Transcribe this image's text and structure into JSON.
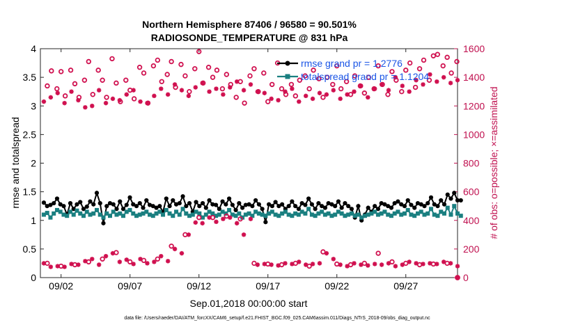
{
  "chart_data": {
    "type": "line",
    "title": "Northern Hemisphere 87406 / 96580 = 90.501%",
    "subtitle": "RADIOSONDE_TEMPERATURE @ 831 hPa",
    "xlabel": "Sep.01,2018 00:00:00 start",
    "ylabel": "rmse and totalspread",
    "y2label": "# of obs: o=possible; ×=assimilated",
    "footer": "data file: /Users/raeder/DAI/ATM_forcXX/CAM6_setup/f.e21.FHIST_BGC.f09_025.CAM6assim.011/Diags_NTrS_2018-09/obs_diag_output.nc",
    "xlim": [
      0.5,
      30.75
    ],
    "ylim": [
      0,
      4
    ],
    "y2lim": [
      0,
      1600
    ],
    "x_ticks": [
      2,
      7,
      12,
      17,
      22,
      27
    ],
    "x_tick_labels": [
      "09/02",
      "09/07",
      "09/12",
      "09/17",
      "09/22",
      "09/27"
    ],
    "y_ticks": [
      "0",
      "0.5",
      "1",
      "1.5",
      "2",
      "2.5",
      "3",
      "3.5",
      "4"
    ],
    "y2_ticks": [
      "0",
      "200",
      "400",
      "600",
      "800",
      "1000",
      "1200",
      "1400",
      "1600"
    ],
    "legend": [
      {
        "label": "rmse grand pr = 1.2776",
        "color": "#000000"
      },
      {
        "label": "totalspread grand pr = 1.1204",
        "color": "#1a7f80"
      }
    ],
    "series": [
      {
        "name": "rmse",
        "axis": "left",
        "color": "#000000",
        "values": [
          1.31,
          1.25,
          1.27,
          1.3,
          1.38,
          1.28,
          1.25,
          1.1,
          1.3,
          1.2,
          1.28,
          1.32,
          1.2,
          1.24,
          1.33,
          1.28,
          1.48,
          1.3,
          0.95,
          1.25,
          1.3,
          1.28,
          1.2,
          1.33,
          1.2,
          1.27,
          1.4,
          1.28,
          1.25,
          1.3,
          1.22,
          1.35,
          1.27,
          1.25,
          1.22,
          1.25,
          1.15,
          1.38,
          1.25,
          1.35,
          1.28,
          1.3,
          1.42,
          1.25,
          1.3,
          1.15,
          1.32,
          1.25,
          1.3,
          1.22,
          1.35,
          1.28,
          1.27,
          1.2,
          1.33,
          1.28,
          1.38,
          1.27,
          1.18,
          1.3,
          1.22,
          1.27,
          1.28,
          1.25,
          1.35,
          1.28,
          1.2,
          0.97,
          1.28,
          1.25,
          1.32,
          1.25,
          1.28,
          1.2,
          1.25,
          1.33,
          1.25,
          1.2,
          1.3,
          1.27,
          1.38,
          1.28,
          1.2,
          1.3,
          1.25,
          1.22,
          1.3,
          1.28,
          1.25,
          1.33,
          1.22,
          1.3,
          1.25,
          1.2,
          1.05,
          1.25,
          1.0,
          1.1,
          1.22,
          1.15,
          1.25,
          1.2,
          1.3,
          1.28,
          1.25,
          1.22,
          1.3,
          1.33,
          1.28,
          1.25,
          1.35,
          1.27,
          1.22,
          1.3,
          1.28,
          1.25,
          1.3,
          1.4,
          1.28,
          1.25,
          1.35,
          1.28,
          1.45,
          1.38,
          1.48,
          1.35,
          1.35
        ]
      },
      {
        "name": "totalspread",
        "axis": "left",
        "color": "#1a7f80",
        "values": [
          1.1,
          1.13,
          1.05,
          1.12,
          1.18,
          1.15,
          1.1,
          1.08,
          1.15,
          1.1,
          1.17,
          1.12,
          1.08,
          1.15,
          1.1,
          1.12,
          1.18,
          1.1,
          1.05,
          1.12,
          1.08,
          1.15,
          1.1,
          1.12,
          1.08,
          1.15,
          1.18,
          1.12,
          1.08,
          1.1,
          1.12,
          1.15,
          1.1,
          1.08,
          1.12,
          1.15,
          1.1,
          1.18,
          1.12,
          1.08,
          1.15,
          1.1,
          1.2,
          1.12,
          1.08,
          1.1,
          1.15,
          1.12,
          1.05,
          1.1,
          1.15,
          1.12,
          1.08,
          1.1,
          1.15,
          1.12,
          1.18,
          1.1,
          1.08,
          1.12,
          1.05,
          1.1,
          1.12,
          1.08,
          1.15,
          1.12,
          1.1,
          1.08,
          1.12,
          1.15,
          1.1,
          1.08,
          1.12,
          1.15,
          1.1,
          1.08,
          1.12,
          1.1,
          1.15,
          1.12,
          1.2,
          1.1,
          1.08,
          1.12,
          1.15,
          1.1,
          1.12,
          1.08,
          1.1,
          1.15,
          1.12,
          1.08,
          1.1,
          1.12,
          1.08,
          1.1,
          1.05,
          1.08,
          1.1,
          1.12,
          1.15,
          1.1,
          1.12,
          1.15,
          1.1,
          1.08,
          1.12,
          1.15,
          1.1,
          1.12,
          1.18,
          1.1,
          1.08,
          1.12,
          1.15,
          1.1,
          1.12,
          1.2,
          1.1,
          1.08,
          1.15,
          1.12,
          1.22,
          1.1,
          1.25,
          1.12,
          1.08
        ]
      },
      {
        "name": "possible",
        "axis": "right",
        "marker": "o",
        "color": "#d0104f",
        "x": [
          1.0,
          1.3,
          1.7,
          2.0,
          2.3,
          2.7,
          3.0,
          3.3,
          3.7,
          4.0,
          4.3,
          4.7,
          5.0,
          5.3,
          5.7,
          6.0,
          6.3,
          6.7,
          7.0,
          7.3,
          7.7,
          8.0,
          8.3,
          8.7,
          9.0,
          9.3,
          9.7,
          10.0,
          10.3,
          10.7,
          11.0,
          11.3,
          11.7,
          12.0,
          12.3,
          12.7,
          13.0,
          13.3,
          13.7,
          14.0,
          14.3,
          14.7,
          15.0,
          15.3,
          15.7,
          16.0,
          16.3,
          16.7,
          17.0,
          17.3,
          17.7,
          18.0,
          18.3,
          18.7,
          19.0,
          19.3,
          19.7,
          20.0,
          20.3,
          20.7,
          21.0,
          21.3,
          21.7,
          22.0,
          22.3,
          22.7,
          23.0,
          23.3,
          23.7,
          24.0,
          24.3,
          24.7,
          25.0,
          25.3,
          25.7,
          26.0,
          26.3,
          26.7,
          27.0,
          27.3,
          27.7,
          28.0,
          28.3,
          28.7,
          29.0,
          29.3,
          29.7,
          30.0,
          30.3,
          30.7
        ],
        "values": [
          1340,
          1445,
          1320,
          1440,
          1270,
          1450,
          1355,
          1260,
          1380,
          1510,
          1280,
          1450,
          1380,
          1260,
          1530,
          1360,
          1230,
          1380,
          1310,
          1250,
          1470,
          1430,
          1220,
          1480,
          1520,
          1370,
          1420,
          1510,
          1330,
          1490,
          1410,
          1300,
          1460,
          1580,
          1360,
          1470,
          1400,
          1450,
          1320,
          1420,
          1350,
          1260,
          1370,
          1220,
          1410,
          1460,
          1300,
          1430,
          1230,
          1350,
          1500,
          1320,
          1280,
          1350,
          1270,
          1380,
          1410,
          1320,
          1450,
          1390,
          1260,
          1400,
          1350,
          1480,
          1320,
          1370,
          1280,
          1410,
          1340,
          1290,
          1400,
          1320,
          1480,
          1350,
          1280,
          1440,
          1380,
          1300,
          1450,
          1500,
          1330,
          1460,
          1520,
          1380,
          1550,
          1560,
          1480,
          1540,
          1430,
          1510
        ]
      },
      {
        "name": "assimilated",
        "axis": "right",
        "marker": "x",
        "color": "#d0104f",
        "x": [
          0.75,
          1.25,
          1.75,
          2.25,
          2.75,
          3.25,
          3.75,
          4.25,
          4.75,
          5.25,
          5.75,
          6.25,
          6.75,
          7.25,
          7.75,
          8.25,
          8.75,
          9.25,
          9.75,
          10.25,
          10.75,
          11.25,
          11.75,
          12.25,
          12.75,
          13.25,
          13.75,
          14.25,
          14.75,
          15.25,
          15.75,
          16.25,
          16.75,
          17.25,
          17.75,
          18.25,
          18.75,
          19.25,
          19.75,
          20.25,
          20.75,
          21.25,
          21.75,
          22.25,
          22.75,
          23.25,
          23.75,
          24.25,
          24.75,
          25.25,
          25.75,
          26.25,
          26.75,
          27.25,
          27.75,
          28.25,
          28.75,
          29.25,
          29.75,
          30.25,
          30.75
        ],
        "values": [
          1230,
          1260,
          1290,
          1220,
          1300,
          1240,
          1190,
          1200,
          1310,
          1220,
          1250,
          1240,
          1280,
          1310,
          1230,
          1220,
          1270,
          1320,
          1280,
          1350,
          1310,
          1270,
          1330,
          1360,
          1300,
          1320,
          1280,
          1330,
          1370,
          1310,
          1350,
          1300,
          1290,
          1250,
          1240,
          1300,
          1320,
          1230,
          1270,
          1250,
          1290,
          1280,
          1310,
          1250,
          1280,
          1300,
          1340,
          1260,
          1320,
          1350,
          1310,
          1400,
          1340,
          1300,
          1380,
          1350,
          1420,
          1370,
          1400,
          1360,
          1380
        ]
      },
      {
        "name": "possible_low",
        "axis": "right",
        "marker": "o",
        "color": "#d0104f",
        "x": [
          1.0,
          2.0,
          3.0,
          4.0,
          5.0,
          6.0,
          7.0,
          8.0,
          9.0,
          10.0,
          11.0,
          12.0,
          13.0,
          14.0,
          15.0,
          16.0,
          17.0,
          18.0,
          19.0,
          20.0,
          21.0,
          22.0,
          23.0,
          24.0,
          25.0,
          26.0,
          27.0,
          28.0,
          29.0,
          30.0
        ],
        "values": [
          100,
          80,
          90,
          110,
          130,
          175,
          110,
          120,
          130,
          220,
          300,
          420,
          420,
          430,
          410,
          100,
          95,
          90,
          100,
          80,
          180,
          95,
          90,
          100,
          170,
          110,
          100,
          90,
          95,
          100
        ]
      },
      {
        "name": "assimilated_low",
        "axis": "right",
        "marker": "x",
        "color": "#d0104f",
        "x": [
          0.75,
          1.25,
          1.75,
          2.25,
          2.75,
          3.25,
          3.75,
          4.25,
          4.75,
          5.25,
          5.75,
          6.25,
          6.75,
          7.25,
          7.75,
          8.25,
          8.75,
          9.25,
          9.75,
          10.25,
          10.75,
          11.25,
          11.75,
          12.25,
          12.75,
          13.25,
          13.75,
          14.25,
          14.75,
          15.25,
          15.75,
          16.25,
          16.75,
          17.25,
          17.75,
          18.25,
          18.75,
          19.25,
          19.75,
          20.25,
          20.75,
          21.25,
          21.75,
          22.25,
          22.75,
          23.25,
          23.75,
          24.25,
          24.75,
          25.25,
          25.75,
          26.25,
          26.75,
          27.25,
          27.75,
          28.25,
          28.75,
          29.25,
          29.75,
          30.25,
          30.75
        ],
        "values": [
          100,
          75,
          80,
          75,
          95,
          90,
          115,
          130,
          90,
          150,
          170,
          110,
          125,
          95,
          130,
          100,
          110,
          150,
          115,
          200,
          170,
          300,
          385,
          380,
          420,
          390,
          410,
          420,
          380,
          300,
          410,
          90,
          95,
          90,
          85,
          100,
          95,
          110,
          90,
          95,
          100,
          170,
          130,
          90,
          80,
          100,
          90,
          85,
          95,
          90,
          100,
          80,
          90,
          110,
          100,
          95,
          100,
          95,
          110,
          100,
          80
        ]
      }
    ]
  }
}
